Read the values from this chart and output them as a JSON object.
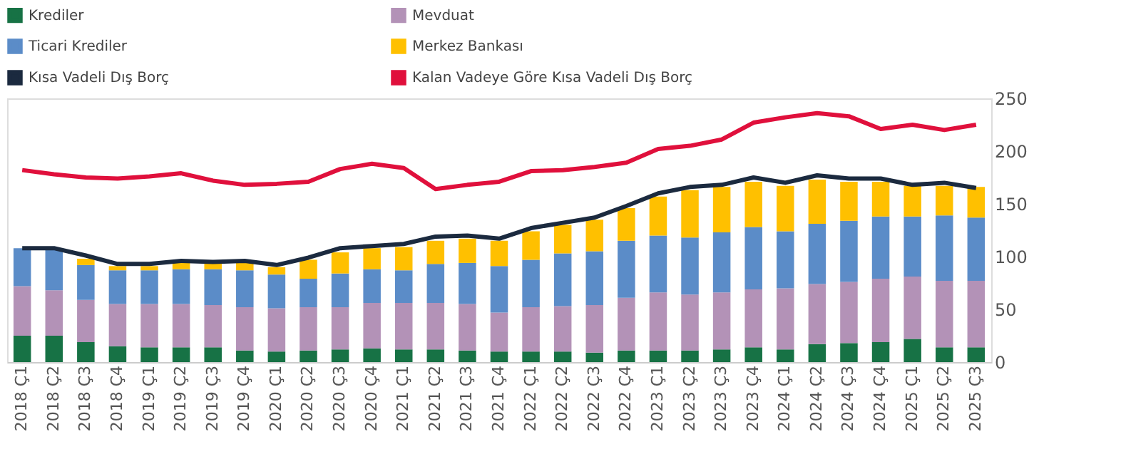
{
  "chart_data": {
    "type": "bar",
    "stacked": true,
    "legend": "top",
    "grid": false,
    "categories": [
      "2018 Ç1",
      "2018 Ç2",
      "2018 Ç3",
      "2018 Ç4",
      "2019 Ç1",
      "2019 Ç2",
      "2019 Ç3",
      "2019 Ç4",
      "2020 Ç1",
      "2020 Ç2",
      "2020 Ç3",
      "2020 Ç4",
      "2021 Ç1",
      "2021 Ç2",
      "2021 Ç3",
      "2021 Ç4",
      "2022 Ç1",
      "2022 Ç2",
      "2022 Ç3",
      "2022 Ç4",
      "2023 Ç1",
      "2023 Ç2",
      "2023 Ç3",
      "2023 Ç4",
      "2024 Ç1",
      "2024 Ç2",
      "2024 Ç3",
      "2024 Ç4",
      "2025 Ç1",
      "2025 Ç2",
      "2025 Ç3"
    ],
    "ylim": [
      0,
      250
    ],
    "yticks": [
      0,
      50,
      100,
      150,
      200,
      250
    ],
    "series": [
      {
        "name": "Krediler",
        "color": "#177245",
        "values": [
          25,
          25,
          19,
          15,
          14,
          14,
          14,
          11,
          10,
          11,
          12,
          13,
          12,
          12,
          11,
          10,
          10,
          10,
          9,
          11,
          11,
          11,
          12,
          14,
          12,
          17,
          18,
          19,
          22,
          14,
          14
        ]
      },
      {
        "name": "Mevduat",
        "color": "#b392b7",
        "values": [
          47,
          43,
          40,
          40,
          41,
          41,
          40,
          41,
          41,
          41,
          40,
          43,
          44,
          44,
          44,
          37,
          42,
          43,
          45,
          50,
          55,
          53,
          54,
          55,
          58,
          57,
          58,
          60,
          59,
          63,
          63
        ]
      },
      {
        "name": "Ticari Krediler",
        "color": "#5b8cc8",
        "values": [
          36,
          38,
          33,
          32,
          32,
          33,
          34,
          35,
          32,
          27,
          32,
          32,
          31,
          37,
          39,
          44,
          45,
          50,
          51,
          54,
          54,
          54,
          57,
          59,
          54,
          57,
          58,
          59,
          57,
          62,
          60
        ]
      },
      {
        "name": "Merkez Bankası",
        "color": "#ffc000",
        "values": [
          null,
          0,
          6,
          4,
          4,
          6,
          6,
          7,
          7,
          18,
          20,
          20,
          22,
          22,
          23,
          24,
          27,
          27,
          30,
          31,
          37,
          45,
          43,
          43,
          43,
          42,
          37,
          33,
          29,
          28,
          29
        ]
      },
      {
        "name": "Kısa Vadeli Dış Borç",
        "type": "line",
        "color": "#1b2a3f",
        "values": [
          108,
          108,
          101,
          93,
          93,
          96,
          95,
          96,
          92,
          99,
          108,
          110,
          112,
          119,
          120,
          117,
          127,
          132,
          137,
          148,
          160,
          166,
          168,
          175,
          170,
          177,
          174,
          174,
          168,
          170,
          165
        ]
      },
      {
        "name": "Kalan Vadeye Göre Kısa Vadeli Dış Borç",
        "type": "line",
        "color": "#e0103c",
        "values": [
          182,
          178,
          175,
          174,
          176,
          179,
          172,
          168,
          169,
          171,
          183,
          188,
          184,
          164,
          168,
          171,
          181,
          182,
          185,
          189,
          202,
          205,
          211,
          227,
          232,
          236,
          233,
          221,
          225,
          220,
          225
        ]
      }
    ]
  }
}
